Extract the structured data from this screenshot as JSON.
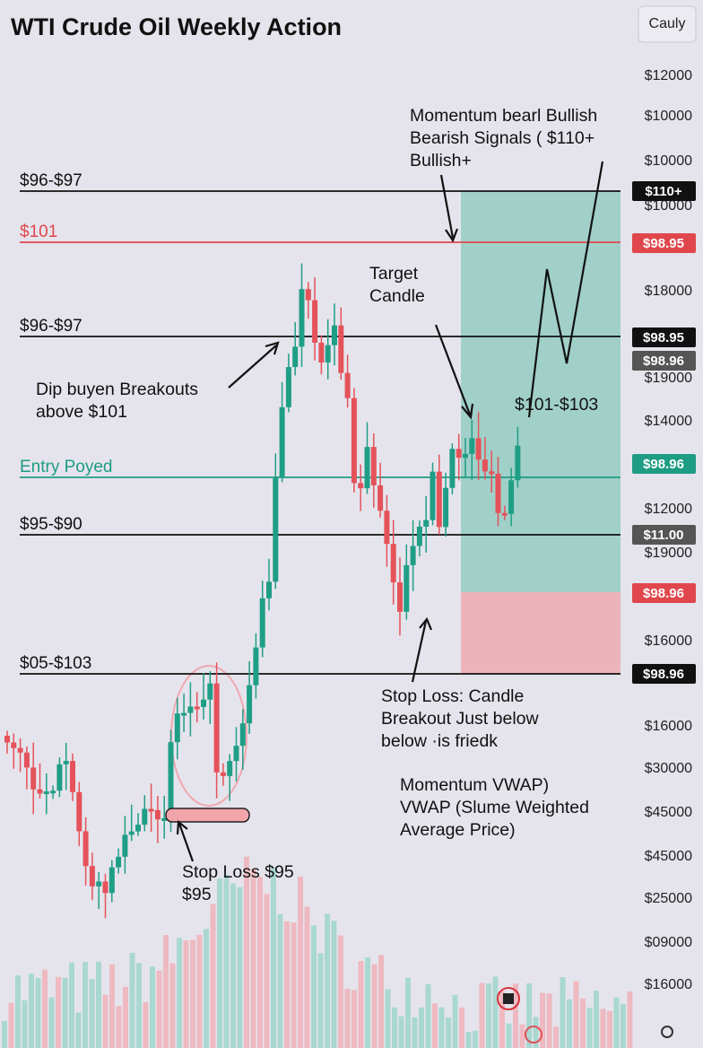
{
  "title": "WTI Crude Oil  Weekly Action",
  "button": "Cauly",
  "axis_labels": [
    "$12000",
    "$10000",
    "$10000",
    "$10000",
    "$18000",
    "$19000",
    "$14000",
    "$12000",
    "$19000",
    "$16000",
    "$16000",
    "$30000",
    "$45000",
    "$45000",
    "$25000",
    "$09000",
    "$16000"
  ],
  "levels": [
    "$96-$97",
    "$101",
    "$96-$97",
    "Entry Poyed",
    "$95-$90",
    "$05-$103"
  ],
  "price_tags": [
    "$110+",
    "$98.95",
    "$98.95",
    "$98.96",
    "$98.96",
    "$11.00",
    "$98.96",
    "$98.96"
  ],
  "annotations": [
    {
      "lines": [
        "Momentum bearl Bullish",
        "Bearish Signals ( $110+",
        "Bullish+"
      ]
    },
    {
      "lines": [
        "Target",
        "Candle"
      ]
    },
    {
      "lines": [
        "Dip buyen Breakouts",
        "above $101"
      ]
    },
    {
      "lines": [
        "$101-$103"
      ]
    },
    {
      "lines": [
        "Stop Loss: Candle",
        "Breakout Just below",
        "below ·is friedk"
      ]
    },
    {
      "lines": [
        "Momentum VWAP)",
        "VWAP (Slume Weighted",
        "Average Price)"
      ]
    },
    {
      "lines": [
        "Stop Loss $95",
        "$95"
      ]
    }
  ]
}
